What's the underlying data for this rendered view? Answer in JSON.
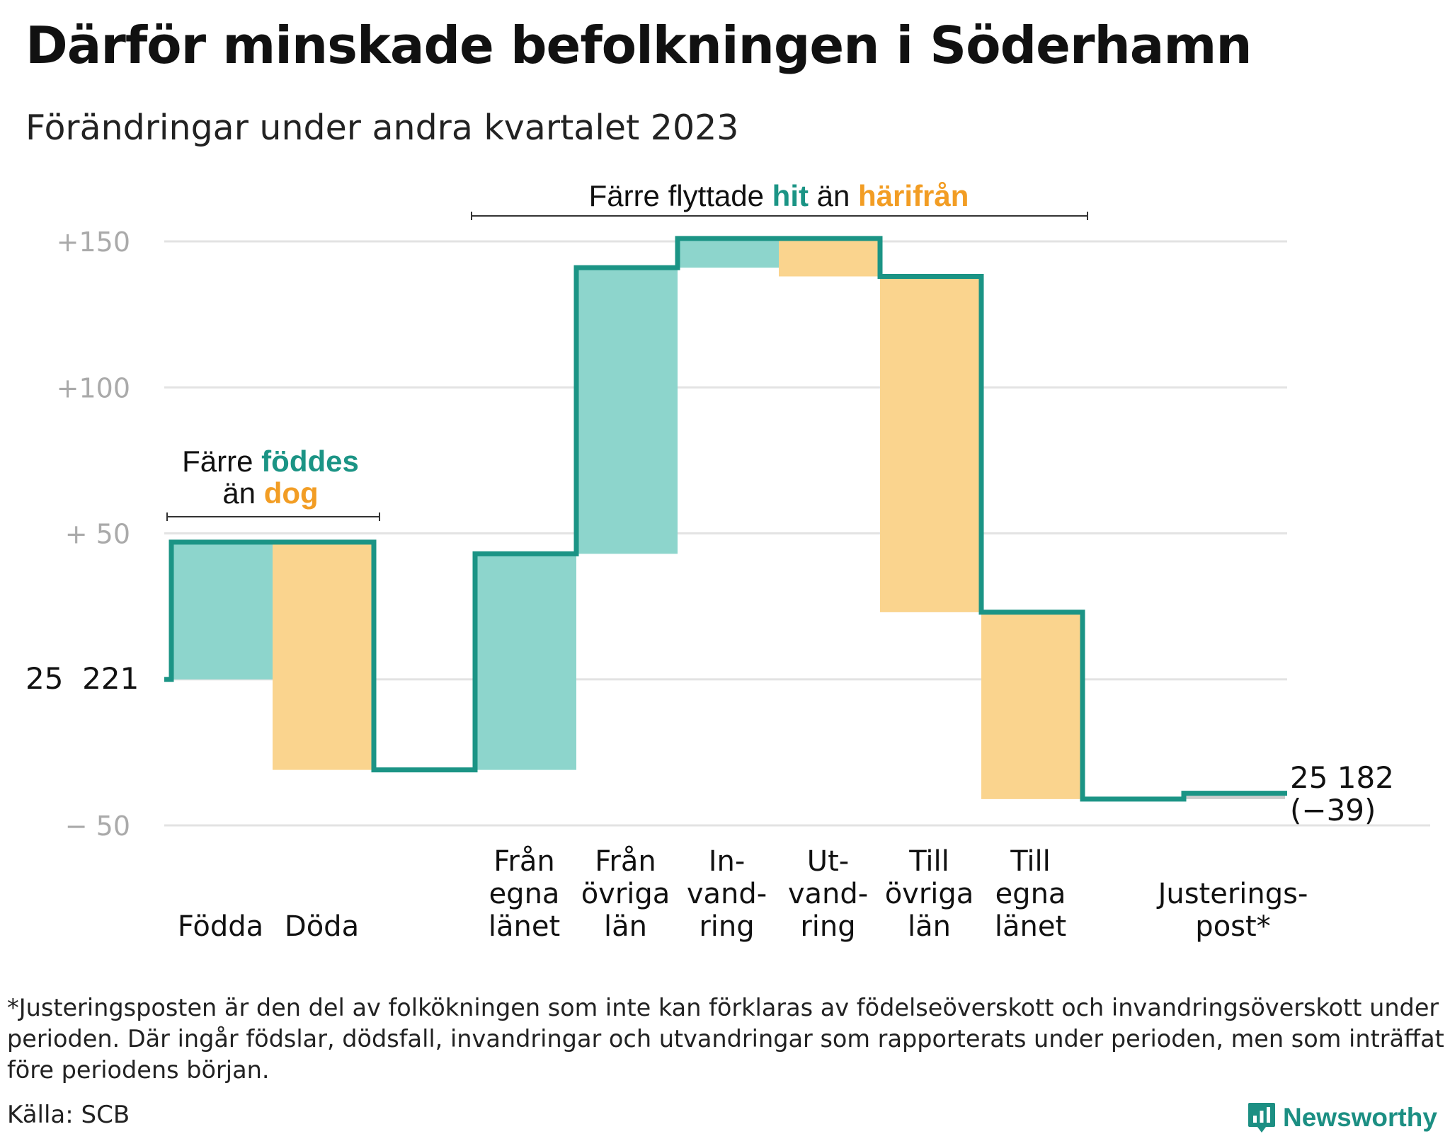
{
  "header": {
    "title": "Därför minskade befolkningen i Söderhamn",
    "subtitle": "Förändringar under andra kvartalet 2023"
  },
  "annotations": {
    "births_deaths": {
      "line1_prefix": "Färre ",
      "line1_highlight": "föddes",
      "line2_prefix": "än ",
      "line2_highlight": "dog"
    },
    "migration": {
      "prefix": "Färre flyttade ",
      "highlight_in": "hit",
      "middle": " än ",
      "highlight_out": "härifrån"
    }
  },
  "start_label": "25  221",
  "end_label": {
    "line1": "25 182",
    "line2": "(−39)"
  },
  "footnote": "*Justeringsposten är den del av folkökningen som inte kan förklaras av födelseöverskott och invandringsöverskott under perioden. Där ingår födslar, dödsfall, invandringar och utvandringar som rapporterats under perioden, men som inträffat före periodens början.",
  "source": "Källa: SCB",
  "brand": {
    "name": "Newsworthy",
    "icon": "newsworthy-logo-icon"
  },
  "colors": {
    "increase_fill": "#8dd5cc",
    "decrease_fill": "#fad48e",
    "adjust_fill": "#cccccc",
    "step_line": "#1b9485",
    "teal_text": "#1b9485",
    "orange_text": "#f29d24",
    "grid": "#e3e3e3",
    "tick_text": "#aaaaaa"
  },
  "chart_data": {
    "type": "waterfall",
    "start_value": 25221,
    "end_value": 25182,
    "net_change": -39,
    "baseline_label": "25  221",
    "y_unit": "change from start",
    "ylim": [
      -50,
      150
    ],
    "yticks": [
      {
        "value": -50,
        "label": "−  50"
      },
      {
        "value": 50,
        "label": "+  50"
      },
      {
        "value": 100,
        "label": "+100"
      },
      {
        "value": 150,
        "label": "+150"
      }
    ],
    "grid": true,
    "steps": [
      {
        "label_lines": [
          "Födda"
        ],
        "value": 47,
        "kind": "increase"
      },
      {
        "label_lines": [
          "Döda"
        ],
        "value": -78,
        "kind": "decrease"
      },
      {
        "label_lines": [],
        "value": 0,
        "kind": "gap"
      },
      {
        "label_lines": [
          "Från",
          "egna",
          "länet"
        ],
        "value": 74,
        "kind": "increase"
      },
      {
        "label_lines": [
          "Från",
          "övriga",
          "län"
        ],
        "value": 98,
        "kind": "increase"
      },
      {
        "label_lines": [
          "In-",
          "vand-",
          "ring"
        ],
        "value": 10,
        "kind": "increase"
      },
      {
        "label_lines": [
          "Ut-",
          "vand-",
          "ring"
        ],
        "value": -13,
        "kind": "decrease"
      },
      {
        "label_lines": [
          "Till",
          "övriga",
          "län"
        ],
        "value": -115,
        "kind": "decrease"
      },
      {
        "label_lines": [
          "Till",
          "egna",
          "länet"
        ],
        "value": -64,
        "kind": "decrease"
      },
      {
        "label_lines": [],
        "value": 0,
        "kind": "gap"
      },
      {
        "label_lines": [
          "Justerings-",
          "post*"
        ],
        "value": 2,
        "kind": "adjustment"
      }
    ]
  }
}
